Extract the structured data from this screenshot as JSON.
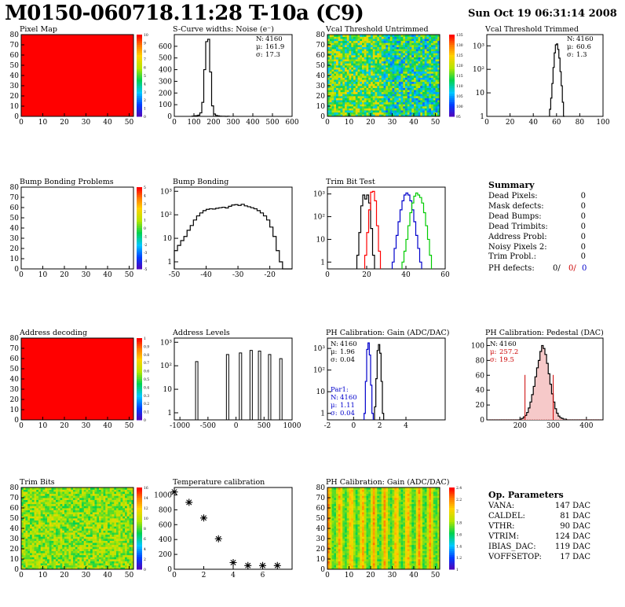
{
  "header": {
    "title": "M0150-060718.11:28 T-10a (C9)",
    "date": "Sun Oct 19 06:31:14 2008"
  },
  "summary": {
    "title": "Summary",
    "rows": [
      {
        "label": "Dead Pixels:",
        "value": "0"
      },
      {
        "label": "Mask defects:",
        "value": "0"
      },
      {
        "label": "Dead Bumps:",
        "value": "0"
      },
      {
        "label": "Dead Trimbits:",
        "value": "0"
      },
      {
        "label": "Address Probl:",
        "value": "0"
      },
      {
        "label": "Noisy Pixels 2:",
        "value": "0"
      },
      {
        "label": "Trim Probl.:",
        "value": "0"
      }
    ],
    "ph_label": "PH defects:",
    "ph_values": [
      "0/",
      "0/",
      "0"
    ],
    "ph_colors": [
      "#000000",
      "#cc0000",
      "#0000cc"
    ]
  },
  "op_params": {
    "title": "Op. Parameters",
    "rows": [
      {
        "label": "VANA:",
        "value": "147 DAC"
      },
      {
        "label": "CALDEL:",
        "value": "81 DAC"
      },
      {
        "label": "VTHR:",
        "value": "90 DAC"
      },
      {
        "label": "VTRIM:",
        "value": "124 DAC"
      },
      {
        "label": "IBIAS_DAC:",
        "value": "119 DAC"
      },
      {
        "label": "VOFFSETOP:",
        "value": "17 DAC"
      }
    ]
  },
  "colors": {
    "red": "#ff0000",
    "blue": "#0000cc",
    "green": "#00cc00",
    "black": "#000000",
    "pedestal_fill": "#cc0000"
  },
  "chart_data": [
    {
      "id": "pixel_map",
      "type": "heatmap",
      "title": "Pixel Map",
      "xticks": [
        0,
        10,
        20,
        30,
        40,
        50
      ],
      "yticks": [
        0,
        10,
        20,
        30,
        40,
        50,
        60,
        70,
        80
      ],
      "xlim": [
        0,
        52
      ],
      "ylim": [
        0,
        80
      ],
      "uniform_color": "#ff0000",
      "palette_ticks": [
        "10",
        "9",
        "8",
        "7",
        "6",
        "5",
        "4",
        "3",
        "2",
        "1",
        "0"
      ]
    },
    {
      "id": "scurve",
      "type": "histogram",
      "title": "S-Curve widths: Noise (e⁻)",
      "xlim": [
        0,
        600
      ],
      "xticks": [
        0,
        100,
        200,
        300,
        400,
        500,
        600
      ],
      "ylim": [
        0,
        700
      ],
      "yticks": [
        0,
        100,
        200,
        300,
        400,
        500,
        600
      ],
      "bins_from": 90,
      "bin_width": 10,
      "counts": [
        2,
        4,
        6,
        10,
        30,
        120,
        400,
        640,
        660,
        380,
        90,
        20,
        8,
        4,
        2,
        1,
        1,
        0,
        1
      ],
      "stats": [
        {
          "label": "N:",
          "value": "4160"
        },
        {
          "label": "μ:",
          "value": "161.9"
        },
        {
          "label": "σ:",
          "value": "17.3"
        }
      ]
    },
    {
      "id": "vcal_untrimmed",
      "type": "heatmap",
      "title": "Vcal Threshold Untrimmed",
      "xticks": [
        0,
        10,
        20,
        30,
        40,
        50
      ],
      "yticks": [
        0,
        10,
        20,
        30,
        40,
        50,
        60,
        70,
        80
      ],
      "xlim": [
        0,
        52
      ],
      "ylim": [
        0,
        80
      ],
      "pattern": "noisy",
      "palette_ticks": [
        "135",
        "130",
        "125",
        "120",
        "115",
        "110",
        "105",
        "100",
        "95"
      ]
    },
    {
      "id": "vcal_trimmed",
      "type": "histogram",
      "title": "Vcal Threshold Trimmed",
      "log": true,
      "xlim": [
        0,
        100
      ],
      "xticks": [
        0,
        20,
        40,
        60,
        80,
        100
      ],
      "ylim": [
        1,
        3000
      ],
      "yticks": [
        "1",
        "10",
        "10²",
        "10³"
      ],
      "bins_from": 54,
      "bin_width": 1,
      "counts": [
        2,
        6,
        25,
        120,
        500,
        1100,
        1200,
        700,
        300,
        80,
        20,
        4,
        1
      ],
      "stats": [
        {
          "label": "N:",
          "value": "4160"
        },
        {
          "label": "μ:",
          "value": "60.6"
        },
        {
          "label": "σ:",
          "value": "1.3"
        }
      ]
    },
    {
      "id": "bump_problems",
      "type": "heatmap",
      "title": "Bump Bonding Problems",
      "xticks": [
        0,
        10,
        20,
        30,
        40,
        50
      ],
      "yticks": [
        0,
        10,
        20,
        30,
        40,
        50,
        60,
        70,
        80
      ],
      "xlim": [
        0,
        52
      ],
      "ylim": [
        0,
        80
      ],
      "uniform_color": "#ffffff",
      "palette_ticks": [
        "5",
        "4",
        "3",
        "2",
        "1",
        "0",
        "-1",
        "-2",
        "-3",
        "-4",
        "-5"
      ]
    },
    {
      "id": "bump_bonding",
      "type": "histogram",
      "title": "Bump Bonding",
      "log": true,
      "xlim": [
        -50,
        -13
      ],
      "xticks": [
        -50,
        -40,
        -30,
        -20
      ],
      "ylim": [
        0.5,
        1500
      ],
      "yticks": [
        "1",
        "10",
        "10²",
        "10³"
      ],
      "bins_from": -50,
      "bin_width": 1,
      "counts": [
        3,
        5,
        8,
        12,
        22,
        35,
        60,
        90,
        120,
        150,
        170,
        180,
        175,
        190,
        200,
        210,
        195,
        230,
        260,
        270,
        250,
        280,
        240,
        220,
        200,
        180,
        150,
        120,
        90,
        60,
        30,
        12,
        3,
        1,
        0,
        0,
        0
      ]
    },
    {
      "id": "trim_bit_test",
      "type": "histogram",
      "title": "Trim Bit Test",
      "log": true,
      "xlim": [
        0,
        60
      ],
      "xticks": [
        0,
        20,
        40,
        60
      ],
      "ylim": [
        0.5,
        2000
      ],
      "yticks": [
        "1",
        "10",
        "10²",
        "10³"
      ],
      "series": [
        {
          "name": "trim14",
          "color": "#000000",
          "bins_from": 15,
          "bin_width": 1,
          "counts": [
            2,
            20,
            300,
            900,
            600,
            900,
            400,
            30,
            2
          ]
        },
        {
          "name": "trim13",
          "color": "#ff0000",
          "bins_from": 19,
          "bin_width": 1,
          "counts": [
            2,
            20,
            200,
            1200,
            1300,
            500,
            40,
            3
          ]
        },
        {
          "name": "trim11",
          "color": "#0000cc",
          "bins_from": 33,
          "bin_width": 1,
          "counts": [
            1,
            4,
            15,
            60,
            200,
            500,
            900,
            1100,
            900,
            500,
            200,
            60,
            15,
            4,
            1
          ]
        },
        {
          "name": "trim7",
          "color": "#00cc00",
          "bins_from": 38,
          "bin_width": 1,
          "counts": [
            1,
            3,
            10,
            40,
            150,
            400,
            800,
            1100,
            900,
            700,
            400,
            150,
            40,
            10,
            2
          ]
        }
      ]
    },
    {
      "id": "address_decoding",
      "type": "heatmap",
      "title": "Address decoding",
      "xticks": [
        0,
        10,
        20,
        30,
        40,
        50
      ],
      "yticks": [
        0,
        10,
        20,
        30,
        40,
        50,
        60,
        70,
        80
      ],
      "xlim": [
        0,
        52
      ],
      "ylim": [
        0,
        80
      ],
      "uniform_color": "#ff0000",
      "palette_ticks": [
        "1",
        "0.9",
        "0.8",
        "0.7",
        "0.6",
        "0.5",
        "0.4",
        "0.3",
        "0.2",
        "0.1",
        "0"
      ]
    },
    {
      "id": "address_levels",
      "type": "spikes",
      "title": "Address Levels",
      "log": true,
      "xlim": [
        -1100,
        1000
      ],
      "xticks": [
        -1000,
        -500,
        0,
        500,
        1000
      ],
      "ylim": [
        0.5,
        1500
      ],
      "yticks": [
        "1",
        "10",
        "10²",
        "10³"
      ],
      "peaks": [
        {
          "x": -700,
          "y": 150
        },
        {
          "x": -150,
          "y": 300
        },
        {
          "x": 80,
          "y": 350
        },
        {
          "x": 270,
          "y": 450
        },
        {
          "x": 420,
          "y": 420
        },
        {
          "x": 600,
          "y": 300
        },
        {
          "x": 800,
          "y": 200
        }
      ]
    },
    {
      "id": "ph_gain",
      "type": "histogram",
      "title": "PH Calibration: Gain (ADC/DAC)",
      "log": true,
      "xlim": [
        -2,
        7
      ],
      "xticks": [
        -2,
        0,
        2,
        4
      ],
      "ylim": [
        0.5,
        3000
      ],
      "yticks": [
        "1",
        "10",
        "10²",
        "10³"
      ],
      "series": [
        {
          "name": "gain",
          "color": "#000000",
          "bins_from": 1.6,
          "bin_width": 0.1,
          "counts": [
            2,
            40,
            800,
            1500,
            600,
            30,
            1
          ]
        },
        {
          "name": "Par1",
          "color": "#0000cc",
          "bins_from": 0.8,
          "bin_width": 0.1,
          "counts": [
            1,
            30,
            900,
            1800,
            500,
            20,
            1
          ]
        }
      ],
      "stats": [
        {
          "label": "N:",
          "value": "4160"
        },
        {
          "label": "μ:",
          "value": "1.96"
        },
        {
          "label": "σ:",
          "value": "0.04"
        }
      ],
      "stats2_title": "Par1:",
      "stats2": [
        {
          "label": "N:",
          "value": "4160"
        },
        {
          "label": "μ:",
          "value": "1.11"
        },
        {
          "label": "σ:",
          "value": "0.04"
        }
      ]
    },
    {
      "id": "ph_pedestal",
      "type": "histogram",
      "title": "PH Calibration: Pedestal (DAC)",
      "xlim": [
        100,
        450
      ],
      "xticks": [
        200,
        300,
        400
      ],
      "ylim": [
        0,
        110
      ],
      "yticks": [
        0,
        20,
        40,
        60,
        80,
        100
      ],
      "bins_from": 200,
      "bin_width": 5,
      "counts": [
        1,
        2,
        4,
        6,
        10,
        16,
        24,
        34,
        45,
        58,
        70,
        80,
        92,
        100,
        96,
        88,
        76,
        62,
        48,
        35,
        24,
        15,
        9,
        5,
        3,
        2,
        1,
        1
      ],
      "stats": [
        {
          "label": "N:",
          "value": "4160"
        },
        {
          "label": "μ:",
          "value": "257.2"
        },
        {
          "label": "σ:",
          "value": "19.5"
        }
      ]
    },
    {
      "id": "trim_bits",
      "type": "heatmap",
      "title": "Trim Bits",
      "xticks": [
        0,
        10,
        20,
        30,
        40,
        50
      ],
      "yticks": [
        0,
        10,
        20,
        30,
        40,
        50,
        60,
        70,
        80
      ],
      "xlim": [
        0,
        52
      ],
      "ylim": [
        0,
        80
      ],
      "pattern": "green",
      "palette_ticks": [
        "16",
        "14",
        "12",
        "10",
        "8",
        "6",
        "4",
        "2",
        "0"
      ]
    },
    {
      "id": "temperature",
      "type": "scatter",
      "title": "Temperature calibration",
      "xlim": [
        0,
        8
      ],
      "xticks": [
        0,
        2,
        4,
        6
      ],
      "ylim": [
        0,
        1100
      ],
      "yticks": [
        0,
        200,
        400,
        600,
        800,
        1000
      ],
      "x": [
        0,
        1,
        2,
        3,
        4,
        5,
        6,
        7
      ],
      "y": [
        1040,
        900,
        690,
        410,
        90,
        50,
        50,
        50
      ]
    },
    {
      "id": "ph_gain_map",
      "type": "heatmap",
      "title": "PH Calibration: Gain (ADC/DAC)",
      "xticks": [
        0,
        10,
        20,
        30,
        40,
        50
      ],
      "yticks": [
        0,
        10,
        20,
        30,
        40,
        50,
        60,
        70,
        80
      ],
      "xlim": [
        0,
        52
      ],
      "ylim": [
        0,
        80
      ],
      "pattern": "stripes",
      "palette_ticks": [
        "2.4",
        "2.2",
        "2",
        "1.8",
        "1.6",
        "1.4",
        "1.2",
        "1"
      ]
    }
  ]
}
